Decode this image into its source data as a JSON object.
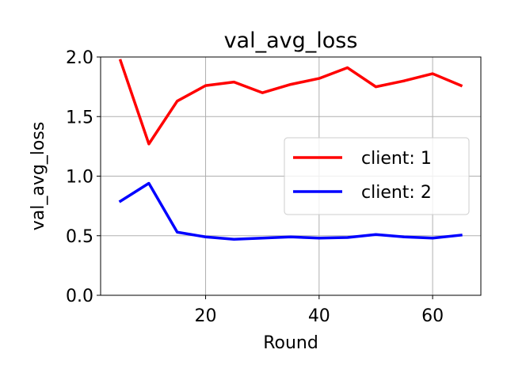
{
  "chart_data": {
    "type": "line",
    "title": "val_avg_loss",
    "xlabel": "Round",
    "ylabel": "val_avg_loss",
    "xlim": [
      1.5,
      68.5
    ],
    "ylim": [
      0.0,
      2.0
    ],
    "xticks": [
      20,
      40,
      60
    ],
    "yticks": [
      0.0,
      0.5,
      1.0,
      1.5,
      2.0
    ],
    "xtick_labels": [
      "20",
      "40",
      "60"
    ],
    "ytick_labels": [
      "0.0",
      "0.5",
      "1.0",
      "1.5",
      "2.0"
    ],
    "grid": true,
    "legend_position": "center-right",
    "x": [
      5,
      10,
      15,
      20,
      25,
      30,
      35,
      40,
      45,
      50,
      55,
      60,
      65
    ],
    "series": [
      {
        "name": "client: 1",
        "color": "#ff0000",
        "values": [
          1.97,
          1.27,
          1.63,
          1.76,
          1.79,
          1.7,
          1.77,
          1.82,
          1.91,
          1.75,
          1.8,
          1.86,
          1.76
        ]
      },
      {
        "name": "client: 2",
        "color": "#0000ff",
        "values": [
          0.79,
          0.94,
          0.53,
          0.49,
          0.47,
          0.48,
          0.49,
          0.48,
          0.485,
          0.51,
          0.49,
          0.48,
          0.505
        ]
      }
    ]
  }
}
